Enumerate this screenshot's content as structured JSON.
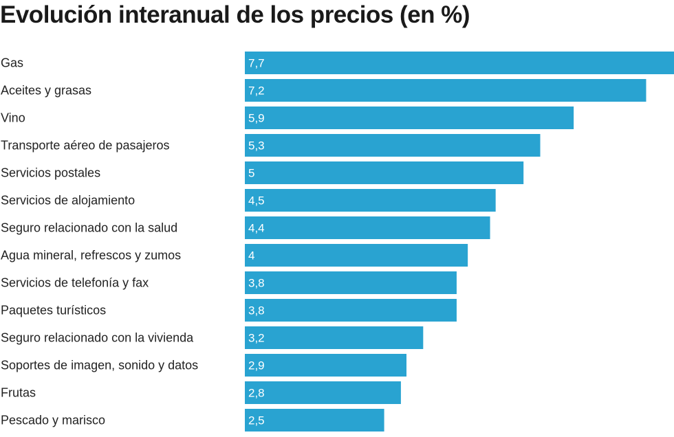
{
  "chart_data": {
    "type": "bar",
    "orientation": "horizontal",
    "title": "Evolución interanual de los precios (en %)",
    "categories": [
      "Gas",
      "Aceites y grasas",
      "Vino",
      "Transporte aéreo de pasajeros",
      "Servicios postales",
      "Servicios de alojamiento",
      "Seguro relacionado con la salud",
      "Agua mineral, refrescos y zumos",
      "Servicios de telefonía y fax",
      "Paquetes turísticos",
      "Seguro relacionado con la vivienda",
      "Soportes de imagen, sonido y datos",
      "Frutas",
      "Pescado y marisco"
    ],
    "values": [
      7.7,
      7.2,
      5.9,
      5.3,
      5,
      4.5,
      4.4,
      4,
      3.8,
      3.8,
      3.2,
      2.9,
      2.8,
      2.5
    ],
    "value_labels": [
      "7,7",
      "7,2",
      "5,9",
      "5,3",
      "5",
      "4,5",
      "4,4",
      "4",
      "3,8",
      "3,8",
      "3,2",
      "2,9",
      "2,8",
      "2,5"
    ],
    "xlim": [
      0,
      7.7
    ],
    "bar_color": "#29a3d1",
    "grid": false,
    "legend": "none"
  }
}
